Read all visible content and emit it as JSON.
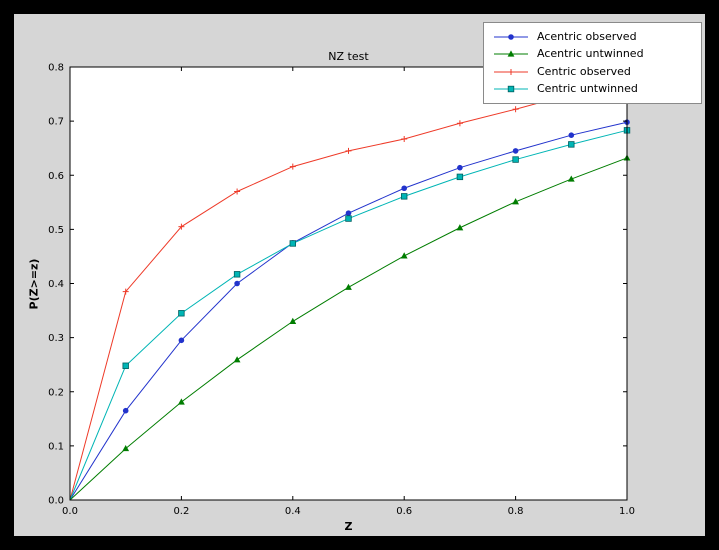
{
  "colors": {
    "window_bg": "#000000",
    "figure_bg": "#d6d6d6",
    "axes_bg": "#ffffff",
    "axes_frame": "#000000",
    "legend_border": "#8a8a8a"
  },
  "chart_data": {
    "type": "line",
    "title": "NZ test",
    "xlabel": "Z",
    "ylabel": "P(Z>=z)",
    "xlim": [
      0.0,
      1.0
    ],
    "ylim": [
      0.0,
      0.8
    ],
    "grid": false,
    "legend_position": "upper right",
    "xticks": [
      0.0,
      0.2,
      0.4,
      0.6,
      0.8,
      1.0
    ],
    "xtick_labels": [
      "0.0",
      "0.2",
      "0.4",
      "0.6",
      "0.8",
      "1.0"
    ],
    "yticks": [
      0.0,
      0.1,
      0.2,
      0.3,
      0.4,
      0.5,
      0.6,
      0.7,
      0.8
    ],
    "ytick_labels": [
      "0.0",
      "0.1",
      "0.2",
      "0.3",
      "0.4",
      "0.5",
      "0.6",
      "0.7",
      "0.8"
    ],
    "x": [
      0.0,
      0.1,
      0.2,
      0.3,
      0.4,
      0.5,
      0.6,
      0.7,
      0.8,
      0.9,
      1.0
    ],
    "series": [
      {
        "name": "Acentric observed",
        "color": "#2233cc",
        "marker": "circle",
        "values": [
          0.0,
          0.165,
          0.295,
          0.4,
          0.475,
          0.53,
          0.576,
          0.614,
          0.645,
          0.674,
          0.698
        ]
      },
      {
        "name": "Acentric untwinned",
        "color": "#007d00",
        "marker": "triangle",
        "values": [
          0.0,
          0.095,
          0.181,
          0.259,
          0.33,
          0.393,
          0.451,
          0.503,
          0.551,
          0.593,
          0.632
        ]
      },
      {
        "name": "Centric observed",
        "color": "#ee3a28",
        "marker": "plus",
        "values": [
          0.0,
          0.385,
          0.505,
          0.57,
          0.616,
          0.645,
          0.667,
          0.696,
          0.722,
          0.75,
          0.776
        ]
      },
      {
        "name": "Centric untwinned",
        "color": "#00b5b5",
        "marker": "square",
        "values": [
          0.0,
          0.248,
          0.345,
          0.417,
          0.474,
          0.52,
          0.561,
          0.597,
          0.629,
          0.657,
          0.683
        ]
      }
    ]
  }
}
